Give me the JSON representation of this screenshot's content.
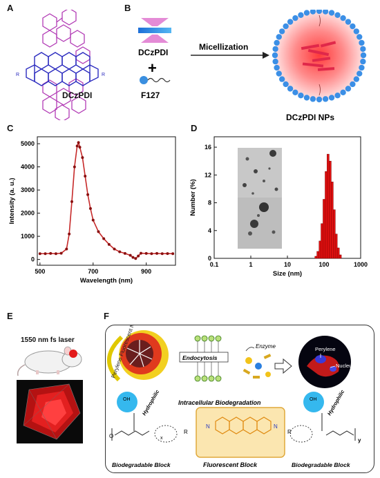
{
  "panels": {
    "a": "A",
    "b": "B",
    "c": "C",
    "d": "D",
    "e": "E",
    "f": "F"
  },
  "panel_a": {
    "molecule_label": "DCzPDI",
    "r_left": "R",
    "r_right": "R"
  },
  "panel_b": {
    "dye_label": "DCzPDI",
    "plus": "+",
    "polymer_label": "F127",
    "arrow_label": "Micellization",
    "product_label": "DCzPDI NPs"
  },
  "panel_e": {
    "laser_label": "1550 nm fs laser"
  },
  "panel_f": {
    "np_label": "Perylene Fluorescent NP",
    "endocytosis": "Endocytosis",
    "enzyme": "Enzyme",
    "perylene": "Perylene",
    "nucleus": "Nucleus",
    "intracellular": "Intracellular Biodegradation",
    "hydrophilic_left": "Hydrophilic",
    "hydrophilic_right": "Hydrophilic",
    "biodeg_left": "Biodegradable Block",
    "fluorescent": "Fluorescent Block",
    "biodeg_right": "Biodegradable Block",
    "x_sub": "x",
    "y_sub": "y",
    "r_left": "R",
    "r_right": "R",
    "n_left": "N",
    "n_right": "N",
    "oh": "OH",
    "o": "O"
  },
  "chart_data": [
    {
      "type": "line",
      "panel": "C",
      "xlabel": "Wavelength (nm)",
      "ylabel": "Intensity (a. u.)",
      "xlim": [
        490,
        1010
      ],
      "ylim": [
        -250,
        5300
      ],
      "xticks": [
        500,
        700,
        900
      ],
      "yticks": [
        0,
        1000,
        2000,
        3000,
        4000,
        5000
      ],
      "color": "#c62828",
      "grid": false,
      "series": [
        {
          "x": [
            500,
            520,
            540,
            560,
            580,
            600,
            610,
            620,
            630,
            640,
            645,
            650,
            660,
            670,
            680,
            690,
            700,
            720,
            740,
            760,
            780,
            800,
            820,
            840,
            850,
            860,
            870,
            880,
            900,
            920,
            940,
            960,
            980,
            1000
          ],
          "y": [
            250,
            250,
            260,
            250,
            270,
            450,
            1100,
            2500,
            4000,
            4900,
            5050,
            4850,
            4400,
            3600,
            2800,
            2200,
            1700,
            1200,
            900,
            650,
            450,
            330,
            260,
            180,
            90,
            40,
            150,
            270,
            260,
            250,
            260,
            250,
            255,
            250
          ]
        }
      ]
    },
    {
      "type": "bar",
      "panel": "D",
      "xlabel": "Size (nm)",
      "ylabel": "Number (%)",
      "xscale": "log",
      "xlim": [
        0.1,
        1000
      ],
      "ylim": [
        0,
        17.5
      ],
      "xticks": [
        "0.1",
        "1",
        "10",
        "100",
        "1000"
      ],
      "yticks": [
        0,
        4,
        8,
        12,
        16
      ],
      "color": "#e01010",
      "grid": false,
      "x": [
        60,
        68,
        78,
        88,
        100,
        114,
        129,
        147,
        167,
        190,
        215,
        245,
        278
      ],
      "values": [
        0.3,
        1.0,
        2.5,
        5.0,
        8.5,
        12.5,
        15.0,
        14.0,
        11.0,
        7.0,
        3.5,
        1.5,
        0.5
      ]
    }
  ]
}
